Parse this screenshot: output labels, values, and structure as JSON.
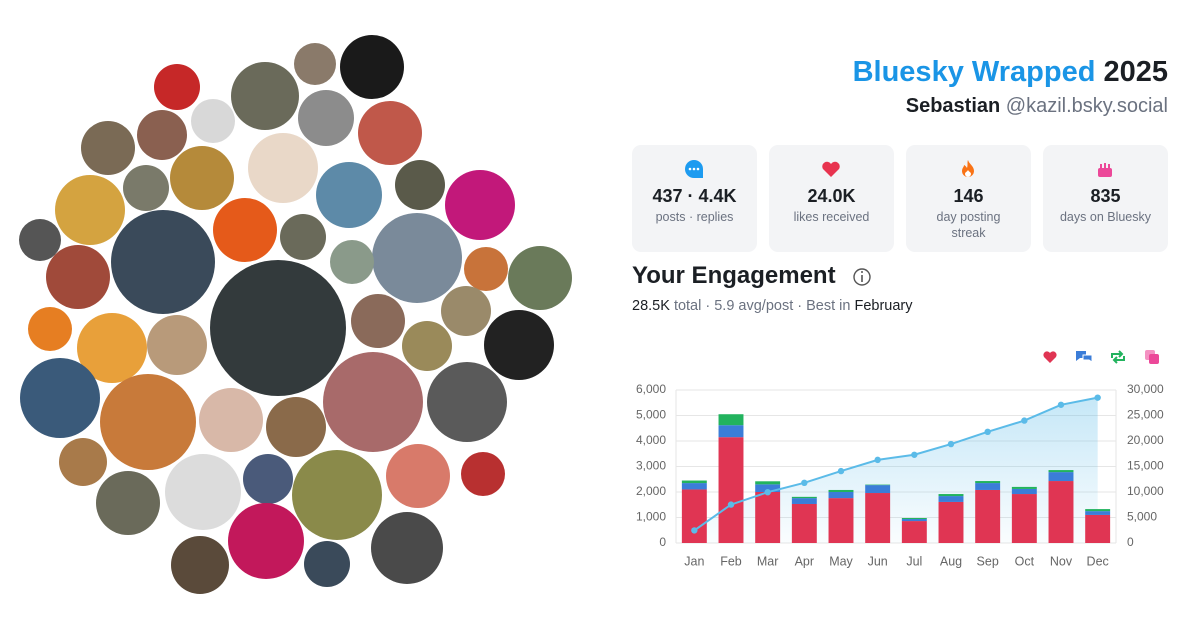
{
  "header": {
    "title": "Bluesky Wrapped",
    "year": "2025",
    "name": "Sebastian",
    "handle": "@kazil.bsky.social"
  },
  "stats": [
    {
      "value": "437 · 4.4K",
      "label": "posts · replies",
      "icon_color": "#1d9bf0"
    },
    {
      "value": "24.0K",
      "label": "likes received",
      "icon_color": "#e8334f"
    },
    {
      "value": "146",
      "label": "day posting streak",
      "icon_color": "#f97316"
    },
    {
      "value": "835",
      "label": "days on Bluesky",
      "icon_color": "#ec4899"
    }
  ],
  "engagement": {
    "title": "Your Engagement",
    "total": "28.5K",
    "summary": "total · 5.9 avg/post · Best in",
    "best_month": "February"
  },
  "chart_data": {
    "type": "bar",
    "stacked": true,
    "categories": [
      "Jan",
      "Feb",
      "Mar",
      "Apr",
      "May",
      "Jun",
      "Jul",
      "Aug",
      "Sep",
      "Oct",
      "Nov",
      "Dec"
    ],
    "series": [
      {
        "color": "#e03553",
        "values": [
          2100,
          4150,
          2000,
          1530,
          1760,
          1960,
          860,
          1610,
          2080,
          1920,
          2430,
          1100
        ]
      },
      {
        "color": "#3b7dd8",
        "values": [
          250,
          470,
          300,
          230,
          240,
          310,
          80,
          230,
          270,
          200,
          350,
          150
        ]
      },
      {
        "color": "#22b35e",
        "values": [
          100,
          430,
          120,
          50,
          80,
          20,
          40,
          80,
          80,
          80,
          80,
          80
        ]
      },
      {
        "color": "#ec4899",
        "values": [
          0,
          0,
          0,
          0,
          0,
          0,
          0,
          0,
          0,
          0,
          0,
          0
        ]
      },
      {
        "type": "line",
        "axis": "y2",
        "color": "#5bbbe8",
        "values": [
          2470,
          7530,
          9960,
          11800,
          14100,
          16300,
          17300,
          19400,
          21800,
          24000,
          27100,
          28500
        ]
      }
    ],
    "ylim": [
      0,
      6000
    ],
    "yticks": [
      0,
      {
        "value": 1000,
        "label": "1,000"
      },
      {
        "value": 2000,
        "label": "2,000"
      },
      {
        "value": 3000,
        "label": "3,000"
      },
      {
        "value": 4000,
        "label": "4,000"
      },
      {
        "value": 5000,
        "label": "5,000"
      },
      {
        "value": 6000,
        "label": "6,000"
      }
    ],
    "y2lim": [
      0,
      30000
    ],
    "y2ticks": [
      0,
      {
        "value": 5000,
        "label": "5,000"
      },
      {
        "value": 10000,
        "label": "10,000"
      },
      {
        "value": 15000,
        "label": "15,000"
      },
      {
        "value": 20000,
        "label": "20,000"
      },
      {
        "value": 25000,
        "label": "25,000"
      },
      {
        "value": 30000,
        "label": "30,000"
      }
    ],
    "grid": true
  }
}
